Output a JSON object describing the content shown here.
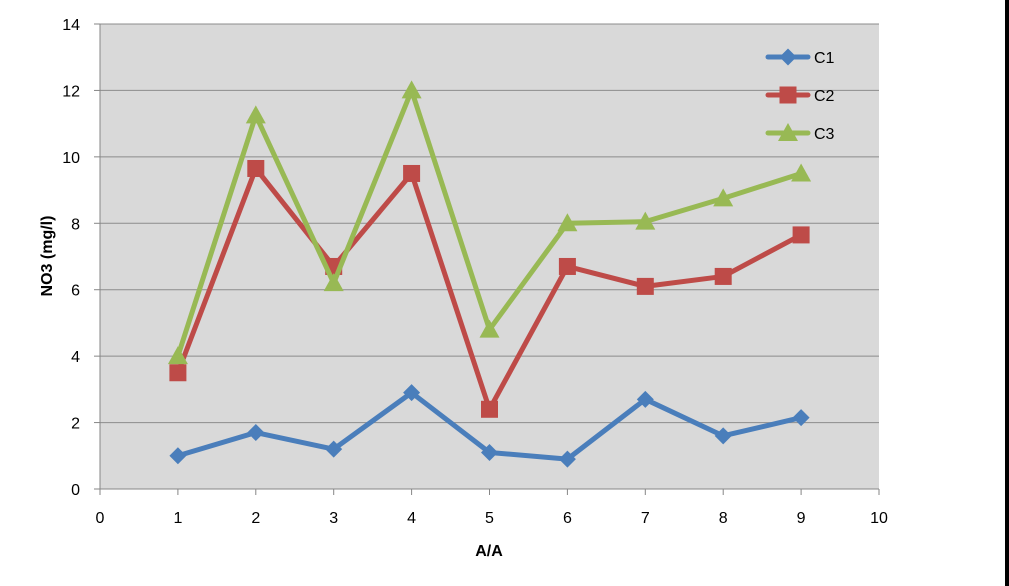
{
  "chart_data": {
    "type": "line",
    "title": "",
    "xlabel": "A/A",
    "ylabel": "NO3 (mg/l)",
    "xlim": [
      0,
      10
    ],
    "ylim": [
      0,
      14
    ],
    "xticks": [
      "0",
      "1",
      "2",
      "3",
      "4",
      "5",
      "6",
      "7",
      "8",
      "9",
      "10"
    ],
    "yticks": [
      "0",
      "2",
      "4",
      "6",
      "8",
      "10",
      "12",
      "14"
    ],
    "grid": "horizontal",
    "legend_position": "top-right",
    "x": [
      1,
      2,
      3,
      4,
      5,
      6,
      7,
      8,
      9
    ],
    "series": [
      {
        "name": "C1",
        "color": "#4a7ebb",
        "marker": "diamond",
        "values": [
          1.0,
          1.7,
          1.2,
          2.9,
          1.1,
          0.9,
          2.7,
          1.6,
          2.15
        ]
      },
      {
        "name": "C2",
        "color": "#be4b48",
        "marker": "square",
        "values": [
          3.5,
          9.65,
          6.7,
          9.5,
          2.4,
          6.7,
          6.1,
          6.4,
          7.65
        ]
      },
      {
        "name": "C3",
        "color": "#98b954",
        "marker": "triangle",
        "values": [
          4.0,
          11.25,
          6.2,
          12.0,
          4.8,
          8.0,
          8.05,
          8.75,
          9.5
        ]
      }
    ]
  }
}
